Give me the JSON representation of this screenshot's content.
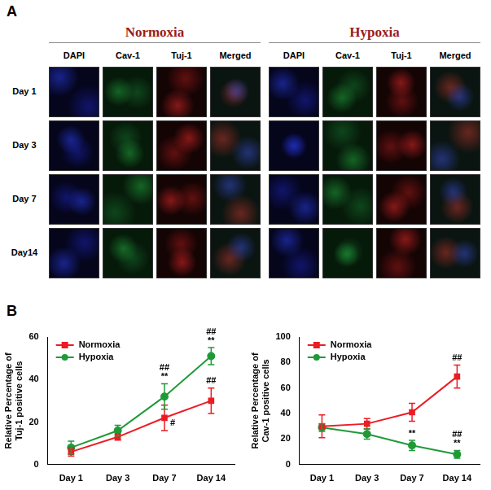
{
  "panel_a": {
    "label": "A",
    "groups": [
      "Normoxia",
      "Hypoxia"
    ],
    "channels": [
      "DAPI",
      "Cav-1",
      "Tuj-1",
      "Merged"
    ],
    "rows": [
      "Day 1",
      "Day 3",
      "Day 7",
      "Day14"
    ]
  },
  "panel_b": {
    "label": "B"
  },
  "chart_data": [
    {
      "type": "line",
      "categories": [
        "Day 1",
        "Day 3",
        "Day 7",
        "Day 14"
      ],
      "y_label": "Relative Percentage of\nTuj-1 positive cells",
      "ylim": [
        0,
        60
      ],
      "yticks": [
        0,
        20,
        40,
        60
      ],
      "grid": false,
      "legend": "upper left",
      "series": [
        {
          "name": "Normoxia",
          "color": "#ec1c24",
          "marker": "square",
          "values": [
            6,
            13,
            22,
            30
          ],
          "errors": [
            2,
            1.5,
            6,
            6
          ],
          "annotations": [
            null,
            null,
            "#",
            "##"
          ]
        },
        {
          "name": "Hypoxia",
          "color": "#1f9a38",
          "marker": "circle",
          "values": [
            8,
            16,
            32,
            51
          ],
          "errors": [
            3,
            2.5,
            6,
            4
          ],
          "annotations": [
            null,
            null,
            "##\n**",
            "##\n**"
          ]
        }
      ]
    },
    {
      "type": "line",
      "categories": [
        "Day 1",
        "Day 3",
        "Day 7",
        "Day 14"
      ],
      "y_label": "Relative Percentage of\nCav-1 positive cells",
      "ylim": [
        0,
        100
      ],
      "yticks": [
        0,
        20,
        40,
        60,
        80,
        100
      ],
      "grid": false,
      "legend": "upper left",
      "series": [
        {
          "name": "Normoxia",
          "color": "#ec1c24",
          "marker": "square",
          "values": [
            30,
            32,
            41,
            69
          ],
          "errors": [
            9,
            4,
            7,
            9
          ],
          "annotations": [
            null,
            null,
            null,
            "##"
          ]
        },
        {
          "name": "Hypoxia",
          "color": "#1f9a38",
          "marker": "circle",
          "values": [
            29,
            24,
            15,
            8
          ],
          "errors": [
            3,
            4,
            4,
            3
          ],
          "annotations": [
            null,
            null,
            "**",
            "##\n**"
          ]
        }
      ]
    }
  ]
}
